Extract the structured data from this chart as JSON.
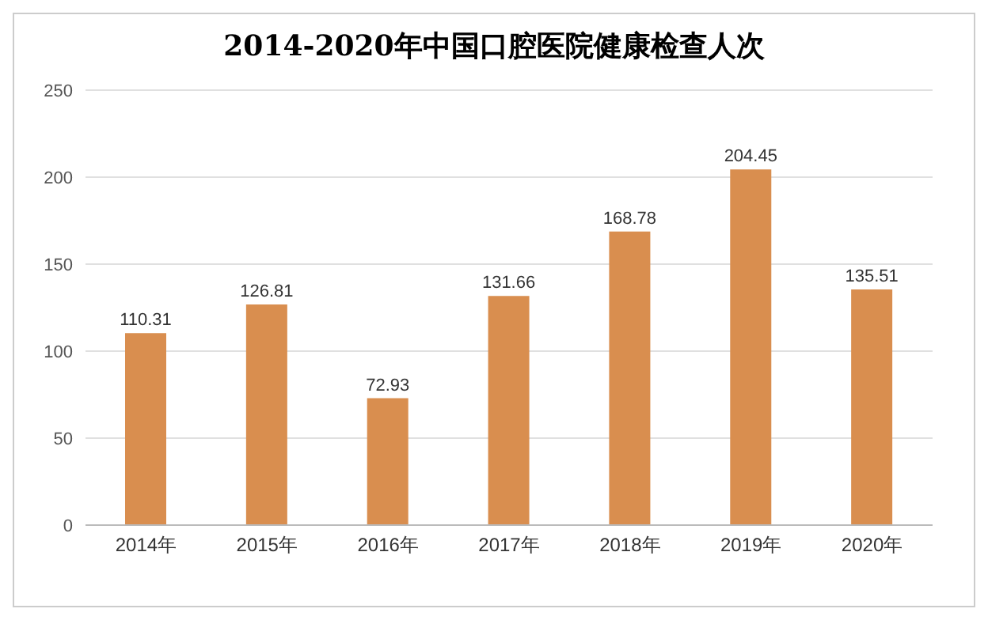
{
  "chart_data": {
    "type": "bar",
    "title": "2014-2020年中国口腔医院健康检查人次",
    "categories": [
      "2014年",
      "2015年",
      "2016年",
      "2017年",
      "2018年",
      "2019年",
      "2020年"
    ],
    "values": [
      110.31,
      126.81,
      72.93,
      131.66,
      168.78,
      204.45,
      135.51
    ],
    "color": "#d98e4f",
    "ylim": [
      0,
      250
    ],
    "yticks": [
      0,
      50,
      100,
      150,
      200,
      250
    ],
    "grid": "y",
    "data_labels": true
  }
}
